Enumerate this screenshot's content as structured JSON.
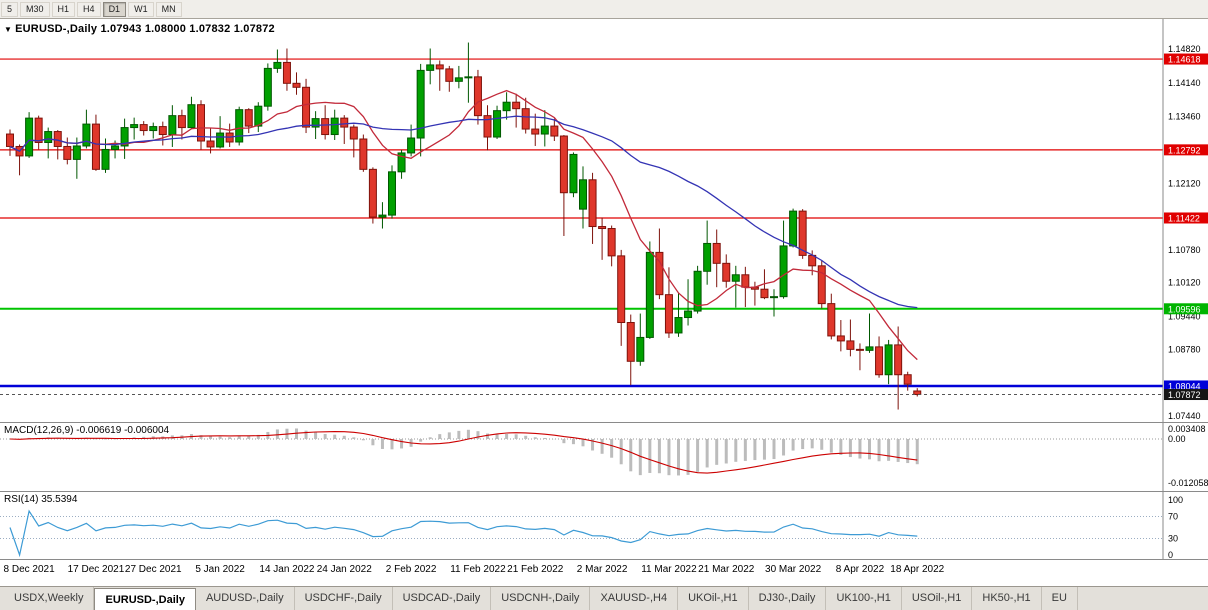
{
  "toolbar": {
    "timeframes": [
      "5",
      "M30",
      "H1",
      "H4",
      "D1",
      "W1",
      "MN"
    ],
    "active": "D1"
  },
  "chart": {
    "title": "EURUSD-,Daily 1.07943 1.08000 1.07832 1.07872",
    "symbol": "EURUSD-",
    "period": "Daily",
    "open": "1.07943",
    "high": "1.08000",
    "low": "1.07832",
    "close": "1.07872"
  },
  "macd": {
    "label": "MACD(12,26,9) -0.006619 -0.006004",
    "fast": 12,
    "slow": 26,
    "signal": 9,
    "value": -0.006619,
    "signal_value": -0.006004,
    "axis_labels": [
      {
        "text": "0.003408",
        "value": 0.003408
      },
      {
        "text": "0.00",
        "value": 0
      },
      {
        "text": "-0.012058",
        "value": -0.012058
      }
    ]
  },
  "rsi": {
    "label": "RSI(14) 35.5394",
    "period": 14,
    "value": 35.5394,
    "axis_labels": [
      {
        "text": "100",
        "value": 100
      },
      {
        "text": "70",
        "value": 70
      },
      {
        "text": "30",
        "value": 30
      },
      {
        "text": "0",
        "value": 0
      }
    ],
    "levels": [
      70,
      30
    ]
  },
  "colors": {
    "bull": "#00a000",
    "bull_border": "#005800",
    "bear": "#df372b",
    "bear_border": "#7e120b",
    "ma_fast": "#c22a3a",
    "ma_slow": "#3434b4",
    "macd_hist": "#bcbcbc",
    "macd_signal": "#cc0000",
    "rsi_line": "#3d9bd5",
    "hline_red": "#e00000",
    "hline_green": "#00c400",
    "hline_blue": "#0000d8",
    "badge_black": "#161616",
    "bid_line": "#555555"
  },
  "price_axis": {
    "plain_labels": [
      {
        "text": "1.14820",
        "price": 1.1482
      },
      {
        "text": "1.14140",
        "price": 1.1414
      },
      {
        "text": "1.13460",
        "price": 1.1346
      },
      {
        "text": "1.12120",
        "price": 1.1212
      },
      {
        "text": "1.10780",
        "price": 1.1078
      },
      {
        "text": "1.10120",
        "price": 1.1012
      },
      {
        "text": "1.09440",
        "price": 1.0944
      },
      {
        "text": "1.08780",
        "price": 1.0878
      },
      {
        "text": "1.07440",
        "price": 1.0744
      }
    ],
    "badges": [
      {
        "text": "1.14618",
        "price": 1.14618,
        "color": "#e00000"
      },
      {
        "text": "1.12792",
        "price": 1.12792,
        "color": "#e00000"
      },
      {
        "text": "1.11422",
        "price": 1.11422,
        "color": "#e00000"
      },
      {
        "text": "1.09596",
        "price": 1.09596,
        "color": "#00b400"
      },
      {
        "text": "1.08044",
        "price": 1.08044,
        "color": "#0000d8"
      },
      {
        "text": "1.07872",
        "price": 1.07872,
        "color": "#161616"
      }
    ]
  },
  "chart_data": {
    "type": "candlestick",
    "title": "EURUSD-,Daily",
    "ylim": [
      1.0744,
      1.1482
    ],
    "grid": false,
    "hlines": [
      {
        "price": 1.14618,
        "color": "#e00000",
        "width": 1.2,
        "name": "resistance-1"
      },
      {
        "price": 1.12792,
        "color": "#e00000",
        "width": 1.2,
        "name": "resistance-2"
      },
      {
        "price": 1.11422,
        "color": "#e00000",
        "width": 1.2,
        "name": "resistance-3"
      },
      {
        "price": 1.09596,
        "color": "#00c400",
        "width": 2,
        "name": "support-green"
      },
      {
        "price": 1.08044,
        "color": "#0000d8",
        "width": 2.5,
        "name": "support-blue"
      }
    ],
    "bid_line": 1.07872,
    "moving_averages": [
      {
        "type": "sma",
        "period": 10,
        "color": "#c22a3a"
      },
      {
        "type": "sma",
        "period": 30,
        "color": "#3434b4"
      }
    ],
    "date_labels": [
      {
        "label": "8 Dec 2021",
        "index": 2
      },
      {
        "label": "17 Dec 2021",
        "index": 9
      },
      {
        "label": "27 Dec 2021",
        "index": 15
      },
      {
        "label": "5 Jan 2022",
        "index": 22
      },
      {
        "label": "14 Jan 2022",
        "index": 29
      },
      {
        "label": "24 Jan 2022",
        "index": 35
      },
      {
        "label": "2 Feb 2022",
        "index": 42
      },
      {
        "label": "11 Feb 2022",
        "index": 49
      },
      {
        "label": "21 Feb 2022",
        "index": 55
      },
      {
        "label": "2 Mar 2022",
        "index": 62
      },
      {
        "label": "11 Mar 2022",
        "index": 69
      },
      {
        "label": "21 Mar 2022",
        "index": 75
      },
      {
        "label": "30 Mar 2022",
        "index": 82
      },
      {
        "label": "8 Apr 2022",
        "index": 89
      },
      {
        "label": "18 Apr 2022",
        "index": 95
      }
    ],
    "ohlc": [
      [
        "2021-12-06",
        1.1311,
        1.132,
        1.1267,
        1.1286
      ],
      [
        "2021-12-07",
        1.1286,
        1.129,
        1.1228,
        1.1267
      ],
      [
        "2021-12-08",
        1.1267,
        1.1355,
        1.1263,
        1.1343
      ],
      [
        "2021-12-09",
        1.1343,
        1.1348,
        1.128,
        1.1294
      ],
      [
        "2021-12-10",
        1.1294,
        1.1324,
        1.1262,
        1.1316
      ],
      [
        "2021-12-13",
        1.1316,
        1.1319,
        1.126,
        1.1286
      ],
      [
        "2021-12-14",
        1.1286,
        1.1304,
        1.125,
        1.126
      ],
      [
        "2021-12-15",
        1.126,
        1.1304,
        1.1221,
        1.1287
      ],
      [
        "2021-12-16",
        1.1287,
        1.136,
        1.1282,
        1.1331
      ],
      [
        "2021-12-17",
        1.1331,
        1.135,
        1.1237,
        1.124
      ],
      [
        "2021-12-20",
        1.124,
        1.1302,
        1.1233,
        1.128
      ],
      [
        "2021-12-21",
        1.128,
        1.1298,
        1.1262,
        1.1287
      ],
      [
        "2021-12-22",
        1.1287,
        1.1342,
        1.1261,
        1.1324
      ],
      [
        "2021-12-23",
        1.1324,
        1.1344,
        1.13,
        1.133
      ],
      [
        "2021-12-24",
        1.133,
        1.1337,
        1.1308,
        1.1318
      ],
      [
        "2021-12-27",
        1.1318,
        1.1334,
        1.1302,
        1.1326
      ],
      [
        "2021-12-28",
        1.1326,
        1.1336,
        1.1288,
        1.131
      ],
      [
        "2021-12-29",
        1.131,
        1.1369,
        1.1285,
        1.1348
      ],
      [
        "2021-12-30",
        1.1348,
        1.136,
        1.13,
        1.1324
      ],
      [
        "2021-12-31",
        1.1324,
        1.1386,
        1.1321,
        1.137
      ],
      [
        "2022-01-03",
        1.137,
        1.1379,
        1.1279,
        1.1297
      ],
      [
        "2022-01-04",
        1.1297,
        1.1323,
        1.1272,
        1.1285
      ],
      [
        "2022-01-05",
        1.1285,
        1.1347,
        1.1282,
        1.1313
      ],
      [
        "2022-01-06",
        1.1313,
        1.1332,
        1.1285,
        1.1295
      ],
      [
        "2022-01-07",
        1.1295,
        1.1366,
        1.1288,
        1.136
      ],
      [
        "2022-01-10",
        1.136,
        1.1363,
        1.1313,
        1.1327
      ],
      [
        "2022-01-11",
        1.1327,
        1.1375,
        1.1315,
        1.1367
      ],
      [
        "2022-01-12",
        1.1367,
        1.1453,
        1.1358,
        1.1443
      ],
      [
        "2022-01-13",
        1.1443,
        1.1481,
        1.1434,
        1.1455
      ],
      [
        "2022-01-14",
        1.1455,
        1.1483,
        1.1398,
        1.1413
      ],
      [
        "2022-01-17",
        1.1413,
        1.1435,
        1.139,
        1.1405
      ],
      [
        "2022-01-18",
        1.1405,
        1.1422,
        1.1313,
        1.1325
      ],
      [
        "2022-01-19",
        1.1325,
        1.1357,
        1.1301,
        1.1342
      ],
      [
        "2022-01-20",
        1.1342,
        1.1369,
        1.13,
        1.131
      ],
      [
        "2022-01-21",
        1.131,
        1.136,
        1.1299,
        1.1343
      ],
      [
        "2022-01-24",
        1.1343,
        1.1349,
        1.1291,
        1.1325
      ],
      [
        "2022-01-25",
        1.1325,
        1.133,
        1.1264,
        1.1301
      ],
      [
        "2022-01-26",
        1.1301,
        1.131,
        1.1235,
        1.124
      ],
      [
        "2022-01-27",
        1.124,
        1.1244,
        1.1131,
        1.1144
      ],
      [
        "2022-01-28",
        1.1144,
        1.1174,
        1.1121,
        1.1148
      ],
      [
        "2022-01-31",
        1.1148,
        1.1248,
        1.1141,
        1.1235
      ],
      [
        "2022-02-01",
        1.1235,
        1.1279,
        1.1221,
        1.1273
      ],
      [
        "2022-02-02",
        1.1273,
        1.133,
        1.1266,
        1.1303
      ],
      [
        "2022-02-03",
        1.1303,
        1.1452,
        1.1266,
        1.1439
      ],
      [
        "2022-02-04",
        1.1439,
        1.1483,
        1.1411,
        1.145
      ],
      [
        "2022-02-07",
        1.145,
        1.1459,
        1.1398,
        1.1442
      ],
      [
        "2022-02-08",
        1.1442,
        1.1448,
        1.1396,
        1.1417
      ],
      [
        "2022-02-09",
        1.1417,
        1.1448,
        1.1403,
        1.1424
      ],
      [
        "2022-02-10",
        1.1424,
        1.1495,
        1.1374,
        1.1426
      ],
      [
        "2022-02-11",
        1.1426,
        1.144,
        1.133,
        1.1348
      ],
      [
        "2022-02-14",
        1.1348,
        1.1369,
        1.1278,
        1.1305
      ],
      [
        "2022-02-15",
        1.1305,
        1.1368,
        1.1301,
        1.1358
      ],
      [
        "2022-02-16",
        1.1358,
        1.1395,
        1.134,
        1.1375
      ],
      [
        "2022-02-17",
        1.1375,
        1.1392,
        1.1324,
        1.1362
      ],
      [
        "2022-02-18",
        1.1362,
        1.1384,
        1.1312,
        1.1321
      ],
      [
        "2022-02-21",
        1.1321,
        1.1352,
        1.1287,
        1.1311
      ],
      [
        "2022-02-22",
        1.1311,
        1.1359,
        1.1286,
        1.1327
      ],
      [
        "2022-02-23",
        1.1327,
        1.1342,
        1.1297,
        1.1307
      ],
      [
        "2022-02-24",
        1.1307,
        1.1309,
        1.1106,
        1.1193
      ],
      [
        "2022-02-25",
        1.1193,
        1.1274,
        1.1184,
        1.127
      ],
      [
        "2022-02-28",
        1.116,
        1.1246,
        1.1121,
        1.1219
      ],
      [
        "2022-03-01",
        1.1219,
        1.1233,
        1.109,
        1.1125
      ],
      [
        "2022-03-02",
        1.1125,
        1.1143,
        1.1058,
        1.1121
      ],
      [
        "2022-03-03",
        1.1121,
        1.1127,
        1.1045,
        1.1066
      ],
      [
        "2022-03-04",
        1.1066,
        1.1078,
        1.0885,
        1.0932
      ],
      [
        "2022-03-07",
        1.0932,
        1.0948,
        1.0806,
        1.0854
      ],
      [
        "2022-03-08",
        1.0854,
        1.095,
        1.0845,
        1.0902
      ],
      [
        "2022-03-09",
        1.0902,
        1.1095,
        1.0899,
        1.1073
      ],
      [
        "2022-03-10",
        1.1073,
        1.1121,
        1.0979,
        1.0988
      ],
      [
        "2022-03-11",
        1.0988,
        1.1043,
        1.0901,
        1.0911
      ],
      [
        "2022-03-14",
        1.0911,
        1.0992,
        1.0903,
        1.0942
      ],
      [
        "2022-03-15",
        1.0942,
        1.1019,
        1.0926,
        1.0955
      ],
      [
        "2022-03-16",
        1.0955,
        1.1046,
        1.095,
        1.1035
      ],
      [
        "2022-03-17",
        1.1035,
        1.1137,
        1.1008,
        1.1091
      ],
      [
        "2022-03-18",
        1.1091,
        1.1119,
        1.1003,
        1.1051
      ],
      [
        "2022-03-21",
        1.1051,
        1.1069,
        1.1002,
        1.1015
      ],
      [
        "2022-03-22",
        1.1015,
        1.1046,
        1.0962,
        1.1028
      ],
      [
        "2022-03-23",
        1.1028,
        1.1044,
        1.0963,
        1.1003
      ],
      [
        "2022-03-24",
        1.1003,
        1.1014,
        1.0966,
        1.0999
      ],
      [
        "2022-03-25",
        1.0999,
        1.1039,
        1.0979,
        1.0982
      ],
      [
        "2022-03-28",
        1.0982,
        1.0999,
        1.0944,
        1.0984
      ],
      [
        "2022-03-29",
        1.0984,
        1.1137,
        1.098,
        1.1086
      ],
      [
        "2022-03-30",
        1.1086,
        1.1161,
        1.1083,
        1.1156
      ],
      [
        "2022-03-31",
        1.1156,
        1.116,
        1.106,
        1.1067
      ],
      [
        "2022-04-01",
        1.1067,
        1.1077,
        1.1027,
        1.1046
      ],
      [
        "2022-04-04",
        1.1046,
        1.1056,
        1.096,
        1.097
      ],
      [
        "2022-04-05",
        1.097,
        1.099,
        1.0898,
        1.0905
      ],
      [
        "2022-04-06",
        1.0905,
        1.0937,
        1.0874,
        1.0895
      ],
      [
        "2022-04-07",
        1.0895,
        1.0938,
        1.0864,
        1.0878
      ],
      [
        "2022-04-08",
        1.0878,
        1.089,
        1.0836,
        1.0876
      ],
      [
        "2022-04-11",
        1.0876,
        1.095,
        1.0871,
        1.0883
      ],
      [
        "2022-04-12",
        1.0883,
        1.0904,
        1.0821,
        1.0827
      ],
      [
        "2022-04-13",
        1.0827,
        1.0897,
        1.0808,
        1.0887
      ],
      [
        "2022-04-14",
        1.0887,
        1.0924,
        1.0757,
        1.0827
      ],
      [
        "2022-04-15",
        1.0827,
        1.0833,
        1.0795,
        1.0808
      ],
      [
        "2022-04-18",
        1.07943,
        1.08,
        1.07832,
        1.07872
      ]
    ]
  },
  "tabs": {
    "active": "EURUSD-,Daily",
    "items": [
      "USDX,Weekly",
      "EURUSD-,Daily",
      "AUDUSD-,Daily",
      "USDCHF-,Daily",
      "USDCAD-,Daily",
      "USDCNH-,Daily",
      "XAUUSD-,H4",
      "UKOil-,H1",
      "DJ30-,Daily",
      "UK100-,H1",
      "USOil-,H1",
      "HK50-,H1",
      "EU"
    ]
  }
}
